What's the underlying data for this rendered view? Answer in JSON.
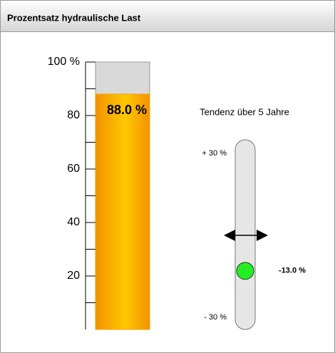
{
  "panel_title": "Prozentsatz hydraulische Last",
  "level": {
    "value": 88.0,
    "value_label": "88.0 %",
    "color": "#f5a000",
    "ylim": [
      0,
      100
    ],
    "yticks": [
      {
        "value": 100,
        "label": "100 %"
      },
      80,
      60,
      40,
      20
    ],
    "minor_ticks": [
      10,
      30,
      50,
      70,
      90
    ]
  },
  "trend": {
    "title": "Tendenz über 5 Jahre",
    "value": -13.0,
    "value_label": "-13.0 %",
    "color": "#22ee22",
    "ylim": [
      -30,
      30
    ],
    "yticks": [
      {
        "value": 30,
        "label": "+ 30 %"
      },
      {
        "value": -30,
        "label": "- 30 %"
      }
    ]
  }
}
